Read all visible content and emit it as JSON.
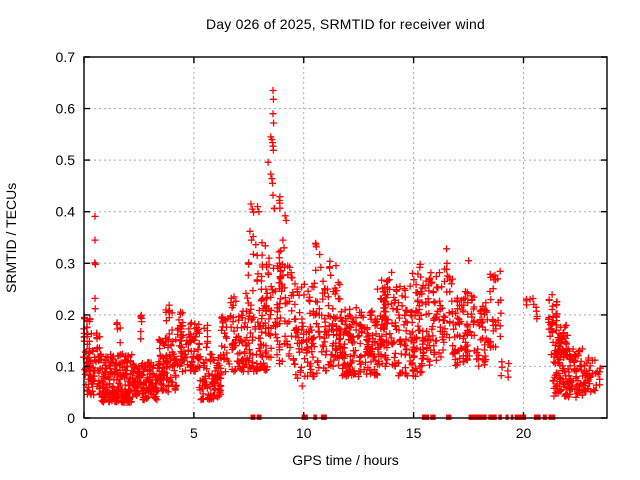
{
  "chart_data": {
    "type": "scatter",
    "title": "Day 026 of 2025, SRMTID for receiver wind",
    "xlabel": "GPS time / hours",
    "ylabel": "SRMTID / TECUs",
    "xlim": [
      0,
      23.8
    ],
    "ylim": [
      0,
      0.7
    ],
    "xticks": [
      0,
      5,
      10,
      15,
      20
    ],
    "xtick_labels": [
      "0",
      "5",
      "10",
      "15",
      "20"
    ],
    "yticks": [
      0,
      0.1,
      0.2,
      0.3,
      0.4,
      0.5,
      0.6,
      0.7
    ],
    "ytick_labels": [
      "0",
      "0.1",
      "0.2",
      "0.3",
      "0.4",
      "0.5",
      "0.6",
      "0.7"
    ],
    "grid": "dashed-major-both-axes",
    "grid_color": "#a8a8a8",
    "axis_color": "#000000",
    "background_color": "#ffffff",
    "legend": "none",
    "marker": "plus",
    "marker_color": "#ff0000",
    "marker_size_px": 7,
    "series_name": "SRMTID",
    "max_point": [
      8.6,
      0.635
    ],
    "outlier_points": [
      [
        0.5,
        0.391
      ],
      [
        0.5,
        0.345
      ],
      [
        0.49,
        0.301
      ],
      [
        0.52,
        0.298
      ],
      [
        0.5,
        0.232
      ],
      [
        0.51,
        0.212
      ],
      [
        7.6,
        0.415
      ],
      [
        7.66,
        0.405
      ],
      [
        7.72,
        0.399
      ],
      [
        7.9,
        0.41
      ],
      [
        7.96,
        0.4
      ],
      [
        7.55,
        0.362
      ],
      [
        7.62,
        0.345
      ],
      [
        7.7,
        0.352
      ],
      [
        7.82,
        0.336
      ],
      [
        8.1,
        0.34
      ],
      [
        8.25,
        0.334
      ],
      [
        8.6,
        0.635
      ],
      [
        8.62,
        0.618
      ],
      [
        8.6,
        0.59
      ],
      [
        8.63,
        0.572
      ],
      [
        8.5,
        0.545
      ],
      [
        8.55,
        0.54
      ],
      [
        8.58,
        0.534
      ],
      [
        8.6,
        0.527
      ],
      [
        8.62,
        0.519
      ],
      [
        8.38,
        0.496
      ],
      [
        8.5,
        0.473
      ],
      [
        8.55,
        0.464
      ],
      [
        8.58,
        0.455
      ],
      [
        8.6,
        0.432
      ],
      [
        9.15,
        0.392
      ],
      [
        9.2,
        0.383
      ],
      [
        9.05,
        0.345
      ],
      [
        9.1,
        0.33
      ],
      [
        8.95,
        0.324
      ],
      [
        9.6,
        0.26
      ],
      [
        9.7,
        0.25
      ],
      [
        16.5,
        0.328
      ],
      [
        16.52,
        0.3
      ],
      [
        17.5,
        0.305
      ],
      [
        18.62,
        0.275
      ],
      [
        18.66,
        0.268
      ],
      [
        20.3,
        0.23
      ]
    ],
    "cluster_regions_format": [
      "x_start",
      "x_end",
      "y_min",
      "y_max",
      "count",
      "low_bias_exponent",
      "columns"
    ],
    "cluster_regions": [
      [
        0.0,
        0.25,
        0.08,
        0.2,
        28,
        1.2,
        3
      ],
      [
        0.05,
        0.75,
        0.045,
        0.165,
        70,
        1.4,
        0
      ],
      [
        0.75,
        2.25,
        0.03,
        0.125,
        200,
        1.3,
        0
      ],
      [
        1.5,
        1.65,
        0.12,
        0.185,
        7,
        1,
        2
      ],
      [
        2.25,
        3.35,
        0.035,
        0.11,
        120,
        1.3,
        0
      ],
      [
        2.55,
        2.65,
        0.13,
        0.2,
        6,
        1,
        1
      ],
      [
        3.35,
        4.25,
        0.05,
        0.155,
        95,
        1.3,
        0
      ],
      [
        3.75,
        4.0,
        0.15,
        0.238,
        10,
        1,
        3
      ],
      [
        4.25,
        5.25,
        0.09,
        0.185,
        85,
        1.2,
        0
      ],
      [
        4.3,
        4.6,
        0.185,
        0.215,
        5,
        1,
        0
      ],
      [
        5.25,
        6.25,
        0.035,
        0.125,
        95,
        1.2,
        0
      ],
      [
        5.45,
        5.6,
        0.12,
        0.2,
        7,
        1,
        2
      ],
      [
        6.25,
        7.35,
        0.09,
        0.21,
        75,
        1.2,
        0
      ],
      [
        6.6,
        7.2,
        0.21,
        0.235,
        6,
        1,
        0
      ],
      [
        7.35,
        8.35,
        0.09,
        0.25,
        95,
        1.3,
        0
      ],
      [
        7.5,
        8.3,
        0.26,
        0.325,
        14,
        1,
        5
      ],
      [
        8.3,
        9.0,
        0.1,
        0.3,
        60,
        1.2,
        8
      ],
      [
        8.4,
        8.9,
        0.3,
        0.43,
        10,
        1,
        3
      ],
      [
        8.95,
        9.45,
        0.12,
        0.3,
        35,
        1.2,
        6
      ],
      [
        9.5,
        10.25,
        0.06,
        0.26,
        55,
        1.2,
        0
      ],
      [
        10.25,
        11.05,
        0.08,
        0.27,
        65,
        1.3,
        0
      ],
      [
        10.55,
        10.75,
        0.28,
        0.34,
        6,
        1,
        2
      ],
      [
        11.05,
        11.65,
        0.1,
        0.27,
        55,
        1.2,
        0
      ],
      [
        11.2,
        11.45,
        0.26,
        0.315,
        5,
        1,
        2
      ],
      [
        11.65,
        13.35,
        0.08,
        0.215,
        170,
        1.2,
        0
      ],
      [
        13.35,
        14.25,
        0.1,
        0.255,
        95,
        1.2,
        0
      ],
      [
        13.5,
        14.0,
        0.255,
        0.285,
        5,
        1,
        0
      ],
      [
        14.25,
        15.55,
        0.08,
        0.26,
        120,
        1.2,
        0
      ],
      [
        14.9,
        15.4,
        0.26,
        0.3,
        6,
        1,
        0
      ],
      [
        15.55,
        16.35,
        0.1,
        0.285,
        65,
        1.2,
        0
      ],
      [
        16.4,
        16.75,
        0.14,
        0.295,
        25,
        1,
        4
      ],
      [
        16.8,
        17.45,
        0.1,
        0.25,
        60,
        1.1,
        8
      ],
      [
        17.45,
        17.75,
        0.12,
        0.24,
        22,
        1,
        4
      ],
      [
        17.8,
        18.45,
        0.1,
        0.225,
        40,
        1.2,
        0
      ],
      [
        18.5,
        18.95,
        0.13,
        0.285,
        28,
        1,
        5
      ],
      [
        19.0,
        19.3,
        0.075,
        0.115,
        6,
        1,
        2
      ],
      [
        20.15,
        20.45,
        0.195,
        0.235,
        5,
        1,
        2
      ],
      [
        20.5,
        20.7,
        0.185,
        0.215,
        4,
        1,
        1
      ],
      [
        21.15,
        21.5,
        0.165,
        0.245,
        26,
        1,
        3
      ],
      [
        21.2,
        22.0,
        0.12,
        0.185,
        45,
        1.1,
        0
      ],
      [
        21.3,
        22.7,
        0.04,
        0.135,
        130,
        1.1,
        0
      ],
      [
        22.7,
        23.3,
        0.05,
        0.12,
        35,
        1.1,
        0
      ],
      [
        23.2,
        23.5,
        0.06,
        0.1,
        8,
        1,
        0
      ]
    ],
    "zero_value_segments": [
      [
        7.58,
        7.8
      ],
      [
        7.86,
        8.08
      ],
      [
        9.9,
        10.18
      ],
      [
        10.44,
        10.6
      ],
      [
        10.78,
        11.05
      ],
      [
        15.38,
        15.42
      ],
      [
        15.45,
        15.49
      ],
      [
        15.55,
        15.7
      ],
      [
        15.76,
        16.0
      ],
      [
        16.48,
        16.72
      ],
      [
        17.5,
        18.32
      ],
      [
        18.4,
        18.78
      ],
      [
        18.86,
        19.02
      ],
      [
        19.18,
        19.32
      ],
      [
        19.42,
        19.48
      ],
      [
        19.6,
        20.12
      ],
      [
        20.48,
        20.78
      ],
      [
        20.88,
        21.06
      ],
      [
        21.14,
        21.44
      ]
    ]
  }
}
